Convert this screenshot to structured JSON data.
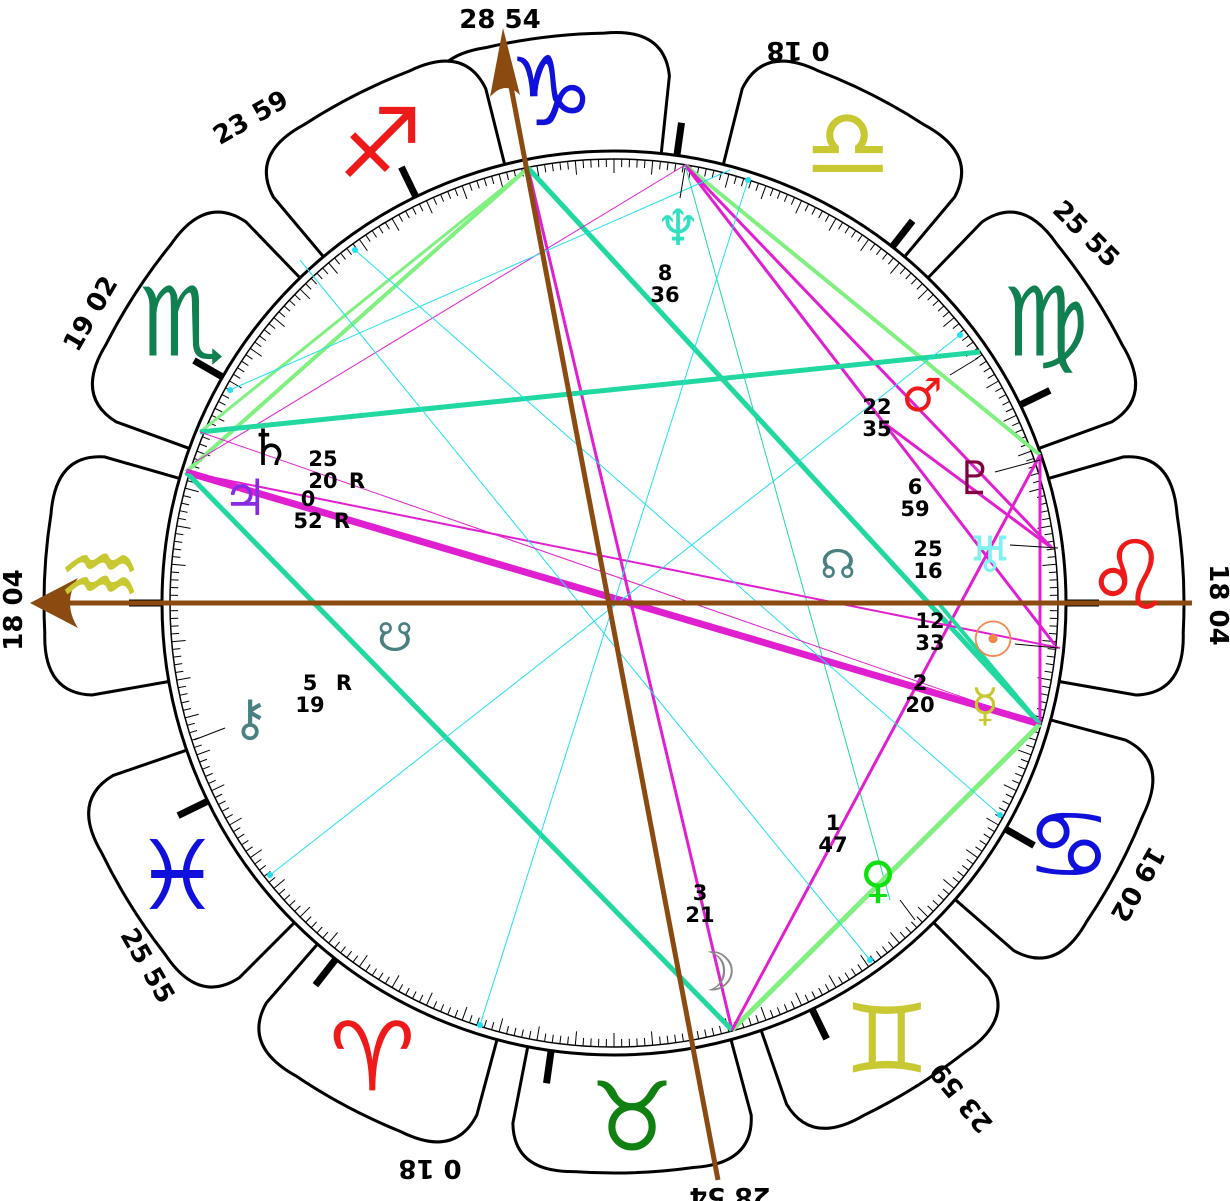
{
  "signs": [
    {
      "id": "capricorn",
      "name": "Capricorn",
      "glyph": "♑",
      "color": "#1010dd"
    },
    {
      "id": "aquarius",
      "name": "Aquarius",
      "glyph": "♒",
      "color": "#c8c832"
    },
    {
      "id": "pisces",
      "name": "Pisces",
      "glyph": "♓",
      "color": "#1010dd"
    },
    {
      "id": "aries",
      "name": "Aries",
      "glyph": "♈",
      "color": "#ee1a1a"
    },
    {
      "id": "taurus",
      "name": "Taurus",
      "glyph": "♉",
      "color": "#108010"
    },
    {
      "id": "gemini",
      "name": "Gemini",
      "glyph": "♊",
      "color": "#c8c832"
    },
    {
      "id": "cancer",
      "name": "Cancer",
      "glyph": "♋",
      "color": "#1010dd"
    },
    {
      "id": "leo",
      "name": "Leo",
      "glyph": "♌",
      "color": "#ee1a1a"
    },
    {
      "id": "virgo",
      "name": "Virgo",
      "glyph": "♍",
      "color": "#108050"
    },
    {
      "id": "libra",
      "name": "Libra",
      "glyph": "♎",
      "color": "#c8c832"
    },
    {
      "id": "scorpio",
      "name": "Scorpio",
      "glyph": "♏",
      "color": "#108050"
    },
    {
      "id": "sagittarius",
      "name": "Sagittarius",
      "glyph": "♐",
      "color": "#ee1a1a"
    }
  ],
  "house_cusps": [
    "18 04",
    "19 02",
    "25 55",
    "0 18",
    "28 54",
    "23 59",
    "18 04",
    "19 02",
    "25 55",
    "0 18",
    "28 54",
    "23 59"
  ],
  "planets": [
    {
      "id": "sun",
      "glyph": "☉",
      "color": "#f08850",
      "deg": "12",
      "min": "33",
      "retro": ""
    },
    {
      "id": "moon",
      "glyph": "☽",
      "color": "#888888",
      "deg": "3",
      "min": "21",
      "retro": ""
    },
    {
      "id": "mercury",
      "glyph": "☿",
      "color": "#c8c832",
      "deg": "2",
      "min": "20",
      "retro": ""
    },
    {
      "id": "venus",
      "glyph": "♀",
      "color": "#10e010",
      "deg": "1",
      "min": "47",
      "retro": ""
    },
    {
      "id": "mars",
      "glyph": "♂",
      "color": "#ee1a1a",
      "deg": "22",
      "min": "35",
      "retro": ""
    },
    {
      "id": "jupiter",
      "glyph": "♃",
      "color": "#8a2be2",
      "deg": "0",
      "min": "52",
      "retro": "R"
    },
    {
      "id": "saturn",
      "glyph": "♄",
      "color": "#000000",
      "deg": "25",
      "min": "20",
      "retro": "R"
    },
    {
      "id": "uranus",
      "glyph": "♅",
      "color": "#80f0f0",
      "deg": "25",
      "min": "16",
      "retro": ""
    },
    {
      "id": "neptune",
      "glyph": "♆",
      "color": "#30e0c0",
      "deg": "8",
      "min": "36",
      "retro": ""
    },
    {
      "id": "pluto",
      "glyph": "♇",
      "color": "#800040",
      "deg": "6",
      "min": "59",
      "retro": ""
    },
    {
      "id": "chiron",
      "glyph": "⚷",
      "color": "#4a8080",
      "deg": "5",
      "min": "19",
      "retro": "R"
    }
  ],
  "nodes": [
    {
      "id": "north-node",
      "glyph": "☊",
      "color": "#4a8080"
    },
    {
      "id": "south-node",
      "glyph": "☋",
      "color": "#4a8080"
    }
  ],
  "aspect_colors": {
    "trine": "#80f080",
    "square": "#e020d0",
    "sextile": "#20d8a0",
    "minor": "#20e0f0",
    "axis": "#8b4a10"
  }
}
